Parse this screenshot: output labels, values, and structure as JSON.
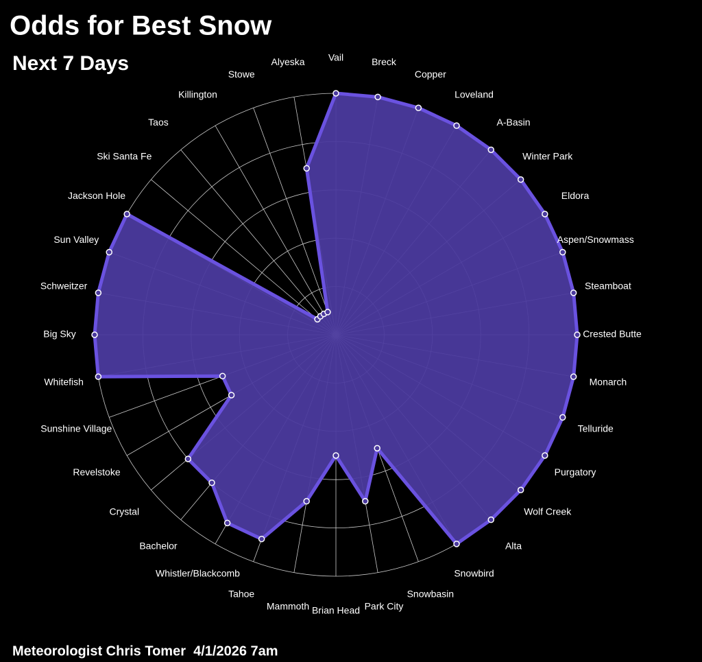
{
  "chart_data": {
    "type": "radar",
    "title": "Odds for Best Snow",
    "subtitle": "Next 7 Days",
    "footer": "Meteorologist Chris Tomer  4/1/2026 7am",
    "categories": [
      "Vail",
      "Breck",
      "Copper",
      "Loveland",
      "A-Basin",
      "Winter Park",
      "Eldora",
      "Aspen/Snowmass",
      "Steamboat",
      "Crested Butte",
      "Monarch",
      "Telluride",
      "Purgatory",
      "Wolf Creek",
      "Alta",
      "Snowbird",
      "Snowbasin",
      "Park City",
      "Brian Head",
      "Mammoth",
      "Tahoe",
      "Whistler/Blackcomb",
      "Bachelor",
      "Crystal",
      "Revelstoke",
      "Sunshine Village",
      "Whitefish",
      "Big Sky",
      "Schweitzer",
      "Sun Valley",
      "Jackson Hole",
      "Ski Santa Fe",
      "Taos",
      "Killington",
      "Stowe",
      "Alyeska"
    ],
    "values": [
      100,
      100,
      100,
      100,
      100,
      100,
      100,
      100,
      100,
      100,
      100,
      100,
      100,
      100,
      100,
      100,
      50,
      70,
      50,
      70,
      90,
      90,
      80,
      80,
      50,
      50,
      100,
      100,
      100,
      100,
      100,
      10,
      10,
      10,
      10,
      70
    ],
    "color": "#6a52e0",
    "fill": "#4b3a9e",
    "rlim": [
      0,
      100
    ],
    "rticks": [
      20,
      40,
      60,
      80,
      100
    ],
    "grid": true
  }
}
